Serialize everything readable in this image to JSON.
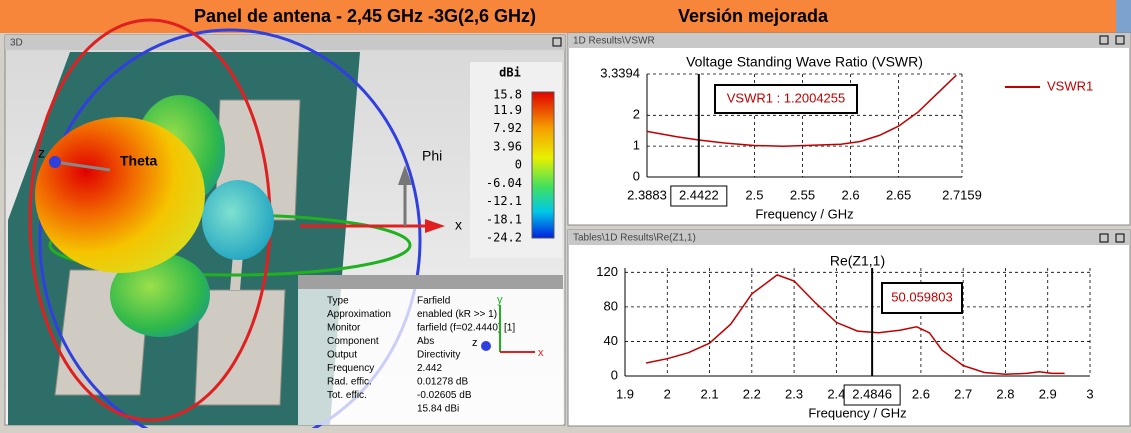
{
  "header": {
    "title": "Panel de antena - 2,45 GHz -3G(2,6 GHz)",
    "subtitle": "Versión mejorada"
  },
  "panel_3d": {
    "title": "3D",
    "colorbar": {
      "unit": "dBi",
      "labels": [
        "15.8",
        "11.9",
        "7.92",
        "3.96",
        "0",
        "-6.04",
        "-12.1",
        "-18.1",
        "-24.2"
      ]
    },
    "axis_labels": {
      "phi": "Phi",
      "theta": "Theta",
      "x": "x",
      "y": "y",
      "z": "z"
    },
    "info": {
      "rows": [
        {
          "label": "Type",
          "value": "Farfield"
        },
        {
          "label": "Approximation",
          "value": "enabled (kR >> 1)"
        },
        {
          "label": "Monitor",
          "value": "farfield (f=02.4440) [1]"
        },
        {
          "label": "Component",
          "value": "Abs"
        },
        {
          "label": "Output",
          "value": "Directivity"
        },
        {
          "label": "Frequency",
          "value": "2.442"
        },
        {
          "label": "Rad. effic.",
          "value": "0.01278 dB"
        },
        {
          "label": "Tot. effic.",
          "value": "-0.02605 dB"
        },
        {
          "value": "15.84 dBi"
        }
      ]
    }
  },
  "chart_data": [
    {
      "type": "line",
      "panel_title": "1D Results\\VSWR",
      "title": "Voltage Standing Wave Ratio (VSWR)",
      "x_label": "Frequency / GHz",
      "x": [
        2.3883,
        2.42,
        2.4422,
        2.47,
        2.5,
        2.53,
        2.56,
        2.59,
        2.61,
        2.63,
        2.65,
        2.67,
        2.69,
        2.71
      ],
      "series": [
        {
          "name": "VSWR1",
          "color": "#c00000",
          "values": [
            1.48,
            1.3,
            1.2,
            1.1,
            1.02,
            1.0,
            1.03,
            1.06,
            1.15,
            1.35,
            1.65,
            2.1,
            2.7,
            3.3
          ]
        }
      ],
      "xlim": [
        2.3883,
        2.7159
      ],
      "xticks": [
        2.3883,
        2.5,
        2.55,
        2.6,
        2.65,
        2.7159
      ],
      "ylim": [
        0,
        3.3394
      ],
      "yticks": [
        0,
        1,
        2,
        3.3394
      ],
      "grid": true,
      "markers": [
        {
          "x": 2.4422,
          "label": "VSWR1 : 1.2004255"
        }
      ]
    },
    {
      "type": "line",
      "panel_title": "Tables\\1D Results\\Re(Z1,1)",
      "title": "Re(Z1,1)",
      "x_label": "Frequency / GHz",
      "x": [
        1.95,
        2.0,
        2.05,
        2.1,
        2.15,
        2.2,
        2.26,
        2.3,
        2.35,
        2.4,
        2.45,
        2.5,
        2.55,
        2.59,
        2.62,
        2.65,
        2.7,
        2.75,
        2.8,
        2.85,
        2.88,
        2.91,
        2.94
      ],
      "series": [
        {
          "name": "Re(Z1,1)",
          "color": "#c00000",
          "values": [
            15,
            20,
            27,
            38,
            60,
            95,
            117,
            110,
            85,
            62,
            52,
            50,
            53,
            57,
            50,
            30,
            12,
            4,
            2,
            3,
            5,
            3,
            3
          ]
        }
      ],
      "xlim": [
        1.9,
        3
      ],
      "xticks": [
        1.9,
        2,
        2.1,
        2.2,
        2.3,
        2.4,
        2.6,
        2.7,
        2.8,
        2.9,
        3
      ],
      "ylim": [
        0,
        125
      ],
      "yticks": [
        0,
        40,
        80,
        120
      ],
      "grid": true,
      "markers": [
        {
          "x": 2.4846,
          "label": "50.059803"
        }
      ]
    }
  ]
}
